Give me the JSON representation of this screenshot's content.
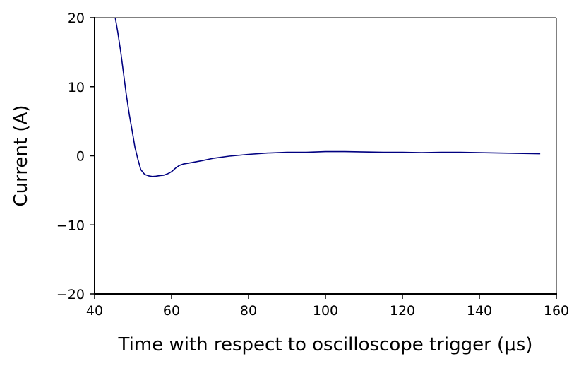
{
  "chart_data": {
    "type": "line",
    "title": "",
    "xlabel": "Time with respect to oscilloscope trigger (μs)",
    "ylabel": "Current (A)",
    "xlim": [
      40,
      160
    ],
    "ylim": [
      -20,
      20
    ],
    "x_ticks": [
      40,
      60,
      80,
      100,
      120,
      140,
      160
    ],
    "y_ticks": [
      -20,
      -10,
      0,
      10,
      20
    ],
    "x_tick_labels": [
      "40",
      "60",
      "80",
      "100",
      "120",
      "140",
      "160"
    ],
    "y_tick_labels": [
      "−20",
      "−10",
      "0",
      "10",
      "20"
    ],
    "grid": false,
    "legend": "none",
    "colors": {
      "line": "#000080",
      "axes": "#000000",
      "frame_right_top": "#808080"
    },
    "series": [
      {
        "x": [
          45.3,
          46.0,
          46.8,
          47.5,
          48.2,
          49.0,
          49.8,
          50.5,
          51.3,
          52.0,
          53.0,
          54.0,
          55.0,
          56.0,
          57.0,
          58.0,
          59.0,
          60.0,
          61.0,
          62.0,
          63.0,
          65.0,
          68.0,
          71.0,
          75.0,
          80.0,
          85.0,
          90.0,
          95.0,
          100.0,
          105.0,
          110.0,
          115.0,
          120.0,
          125.0,
          130.0,
          135.0,
          140.0,
          145.0,
          150.0,
          155.8
        ],
        "y": [
          20.2,
          18.0,
          15.0,
          12.0,
          9.0,
          6.0,
          3.5,
          1.2,
          -0.6,
          -2.0,
          -2.7,
          -2.9,
          -3.0,
          -2.95,
          -2.85,
          -2.8,
          -2.6,
          -2.3,
          -1.8,
          -1.4,
          -1.2,
          -1.0,
          -0.7,
          -0.35,
          -0.05,
          0.2,
          0.4,
          0.5,
          0.5,
          0.6,
          0.6,
          0.55,
          0.5,
          0.5,
          0.45,
          0.5,
          0.5,
          0.45,
          0.4,
          0.35,
          0.3
        ]
      }
    ]
  }
}
